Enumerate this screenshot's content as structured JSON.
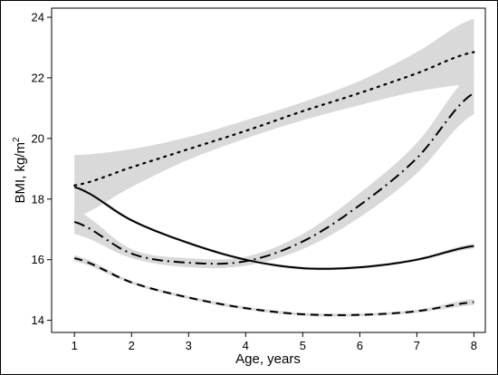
{
  "chart_data": {
    "type": "line",
    "title": "",
    "xlabel": "Age, years",
    "ylabel_text": "BMI, kg/m",
    "ylabel_superscript": "2",
    "xlim": [
      0.6,
      8.2
    ],
    "ylim": [
      13.6,
      24.3
    ],
    "x_ticks": [
      1,
      2,
      3,
      4,
      5,
      6,
      7,
      8
    ],
    "y_ticks": [
      14,
      16,
      18,
      20,
      22,
      24
    ],
    "grid": false,
    "legend": "none",
    "colors": {
      "band": "#d9d9d9",
      "line": "#000000",
      "frame": "#000000"
    },
    "series": [
      {
        "style": "dotted",
        "x": [
          1,
          2,
          3,
          4,
          5,
          6,
          7,
          8
        ],
        "values": [
          18.45,
          19.05,
          19.65,
          20.25,
          20.9,
          21.5,
          22.15,
          22.85
        ],
        "ci_lower": [
          17.4,
          18.4,
          19.3,
          20.0,
          20.6,
          21.1,
          21.55,
          21.8
        ],
        "ci_upper": [
          19.45,
          19.65,
          20.05,
          20.6,
          21.2,
          21.9,
          22.85,
          23.95
        ]
      },
      {
        "style": "dash-dot",
        "x": [
          1,
          2,
          3,
          4,
          5,
          6,
          7,
          8
        ],
        "values": [
          17.25,
          16.2,
          15.9,
          15.95,
          16.6,
          17.8,
          19.35,
          21.5
        ],
        "ci_lower": [
          16.85,
          16.05,
          15.75,
          15.8,
          16.35,
          17.4,
          18.85,
          20.8
        ],
        "ci_upper": [
          17.65,
          16.35,
          16.05,
          16.1,
          16.85,
          18.2,
          19.85,
          22.2
        ]
      },
      {
        "style": "solid",
        "x": [
          1,
          2,
          3,
          4,
          5,
          6,
          7,
          8
        ],
        "values": [
          18.4,
          17.3,
          16.55,
          16.0,
          15.72,
          15.75,
          16.0,
          16.45
        ],
        "ci_lower": [
          18.3,
          17.25,
          16.5,
          15.95,
          15.67,
          15.7,
          15.95,
          16.37
        ],
        "ci_upper": [
          18.5,
          17.35,
          16.6,
          16.05,
          15.77,
          15.8,
          16.05,
          16.53
        ]
      },
      {
        "style": "dashed",
        "x": [
          1,
          2,
          3,
          4,
          5,
          6,
          7,
          8
        ],
        "values": [
          16.05,
          15.25,
          14.75,
          14.4,
          14.2,
          14.18,
          14.3,
          14.6
        ],
        "ci_lower": [
          15.95,
          15.2,
          14.7,
          14.35,
          14.15,
          14.13,
          14.25,
          14.5
        ],
        "ci_upper": [
          16.15,
          15.3,
          14.8,
          14.45,
          14.25,
          14.23,
          14.35,
          14.7
        ]
      }
    ]
  }
}
